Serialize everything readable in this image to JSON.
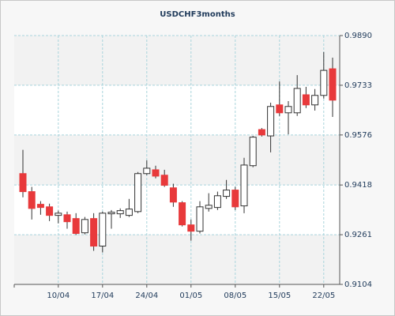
{
  "chart_data": {
    "type": "candlestick",
    "title": "USDCHF3months",
    "categories": [
      null,
      null,
      null,
      null,
      "10/04",
      null,
      null,
      null,
      null,
      "17/04",
      null,
      null,
      null,
      null,
      "24/04",
      null,
      null,
      null,
      null,
      "01/05",
      null,
      null,
      null,
      null,
      "08/05",
      null,
      null,
      null,
      null,
      "15/05",
      null,
      null,
      null,
      null,
      "22/05",
      null
    ],
    "open": [
      0.9454,
      0.9397,
      0.9357,
      0.9349,
      0.9322,
      0.9324,
      0.9312,
      0.9267,
      0.9312,
      0.9225,
      0.9327,
      0.9327,
      0.9322,
      0.9334,
      0.9454,
      0.9466,
      0.9449,
      0.9409,
      0.9362,
      0.9292,
      0.9272,
      0.9344,
      0.9347,
      0.9382,
      0.9402,
      0.9352,
      0.9479,
      0.9593,
      0.9573,
      0.9671,
      0.9646,
      0.9646,
      0.9703,
      0.9671,
      0.9701,
      0.9785
    ],
    "high": [
      0.9529,
      0.9412,
      0.9367,
      0.9359,
      0.9337,
      0.9334,
      0.9329,
      0.9317,
      0.9329,
      0.9334,
      0.9339,
      0.9344,
      0.9374,
      0.9459,
      0.9496,
      0.9479,
      0.9466,
      0.9422,
      0.9367,
      0.9309,
      0.9367,
      0.9392,
      0.9397,
      0.9434,
      0.9412,
      0.9504,
      0.9573,
      0.9598,
      0.9678,
      0.9745,
      0.9683,
      0.9765,
      0.9728,
      0.9721,
      0.9838,
      0.982
    ],
    "low": [
      0.9379,
      0.9309,
      0.9324,
      0.9304,
      0.9297,
      0.928,
      0.926,
      0.9262,
      0.921,
      0.9205,
      0.928,
      0.9314,
      0.9317,
      0.9329,
      0.9449,
      0.9439,
      0.9412,
      0.9349,
      0.9287,
      0.9242,
      0.9265,
      0.9334,
      0.9339,
      0.9374,
      0.9339,
      0.9329,
      0.9474,
      0.9571,
      0.9521,
      0.9636,
      0.9578,
      0.9636,
      0.9661,
      0.9653,
      0.9691,
      0.9633
    ],
    "close": [
      0.9397,
      0.9344,
      0.9347,
      0.9322,
      0.9329,
      0.9302,
      0.9265,
      0.9309,
      0.9225,
      0.9329,
      0.9332,
      0.9337,
      0.9342,
      0.9454,
      0.9471,
      0.9446,
      0.9417,
      0.9364,
      0.9292,
      0.9272,
      0.9349,
      0.9354,
      0.9384,
      0.9402,
      0.9349,
      0.9481,
      0.9569,
      0.9576,
      0.9666,
      0.9646,
      0.9666,
      0.9723,
      0.9671,
      0.9701,
      0.978,
      0.9686
    ],
    "up_color": "#ffffff",
    "down_color": "#e8393b",
    "ylim": [
      0.9104,
      0.989
    ],
    "yticks": [
      {
        "value": 0.989,
        "label": "0.9890"
      },
      0.9733,
      0.9576,
      0.9418,
      0.9261,
      0.9104
    ],
    "grid": true
  }
}
